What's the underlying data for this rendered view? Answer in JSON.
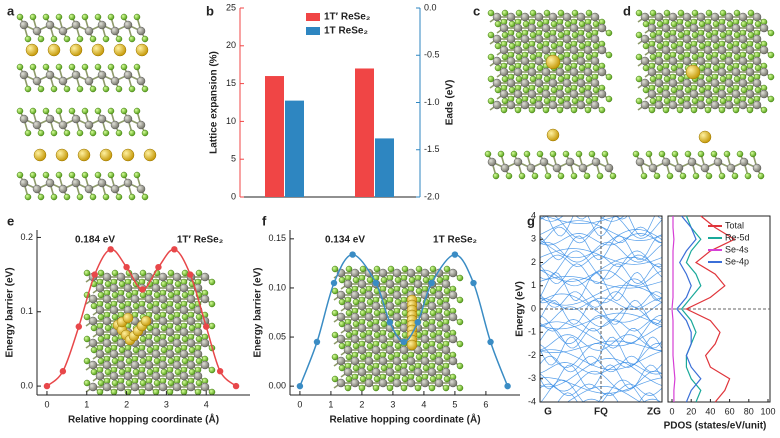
{
  "structures": {
    "panels": [
      "a",
      "c",
      "d"
    ]
  },
  "chart_data": [
    {
      "type": "bar",
      "panel": "b",
      "categories": [
        null,
        null
      ],
      "series": [
        {
          "name": "1T′ ReSe₂",
          "color": "#f04545",
          "values": [
            16,
            17
          ]
        },
        {
          "name": "1T ReSe₂",
          "color": "#2e86c1",
          "values": [
            -0.98,
            -1.38
          ],
          "axis": "y2"
        }
      ],
      "ylabel": "Lattice expansion (%)",
      "y2label": "Eads (eV)",
      "ylim": [
        0,
        25
      ],
      "yticks": [
        0,
        5,
        10,
        15,
        20,
        25
      ],
      "y2lim": [
        -2,
        0
      ],
      "y2ticks": [
        {
          "value": 0,
          "label": "0.0"
        },
        -0.5,
        {
          "value": -1,
          "label": "-1.0"
        },
        -1.5,
        {
          "value": -2,
          "label": "-2.0"
        }
      ],
      "legend": "top"
    },
    {
      "type": "line",
      "panel": "e",
      "color": "#e8474a",
      "x": [
        0,
        0.4,
        0.8,
        1.2,
        1.6,
        2.0,
        2.4,
        2.8,
        3.2,
        3.6,
        4.0,
        4.35,
        4.75
      ],
      "values": [
        0,
        0.02,
        0.08,
        0.15,
        0.184,
        0.16,
        0.13,
        0.16,
        0.184,
        0.15,
        0.08,
        0.02,
        0
      ],
      "xlabel": "Relative hopping coordinate (Å)",
      "ylabel": "Energy barrier (eV)",
      "xlim": [
        -0.25,
        5.1
      ],
      "ylim": [
        -0.012,
        0.21
      ],
      "xticks": [
        0,
        1,
        2,
        3,
        4
      ],
      "yticks": [
        {
          "value": 0,
          "label": "0.0"
        },
        0.1,
        0.2
      ],
      "annotations": [
        "0.184 eV",
        "1T′ ReSe₂"
      ]
    },
    {
      "type": "line",
      "panel": "f",
      "color": "#3a8cc4",
      "x": [
        0,
        0.55,
        1.1,
        1.7,
        2.45,
        2.9,
        3.35,
        3.8,
        4.25,
        5.0,
        5.6,
        6.15,
        6.7
      ],
      "values": [
        0,
        0.045,
        0.105,
        0.134,
        0.105,
        0.065,
        0.045,
        0.065,
        0.105,
        0.134,
        0.105,
        0.045,
        0
      ],
      "xlabel": "Relative hopping coordinate (Å)",
      "ylabel": "Energy barrier (eV)",
      "xlim": [
        -0.32,
        7.1
      ],
      "ylim": [
        -0.009,
        0.159
      ],
      "xticks": [
        0,
        1,
        2,
        3,
        4,
        5,
        6
      ],
      "yticks": [
        {
          "value": 0,
          "label": "0.00"
        },
        {
          "value": 0.05,
          "label": "0.05"
        },
        {
          "value": 0.1,
          "label": "0.10"
        },
        {
          "value": 0.15,
          "label": "0.15"
        }
      ],
      "annotations": [
        "0.134 eV",
        "1T ReSe₂"
      ]
    },
    {
      "type": "band",
      "panel": "g",
      "color": "#3a8ee6",
      "categories": [
        "G",
        "FQ",
        "ZG"
      ],
      "ylabel": "Energy (eV)",
      "ylim": [
        -4,
        4
      ],
      "yticks": [
        -4,
        -3,
        -2,
        -1,
        0,
        1,
        2,
        3,
        4
      ]
    },
    {
      "type": "line",
      "orientation": "horizontal",
      "x": [
        -4,
        -3.5,
        -3,
        -2.5,
        -2,
        -1.5,
        -1,
        -0.5,
        0,
        0.5,
        1,
        1.5,
        2,
        2.5,
        3,
        3.5,
        4
      ],
      "series": [
        {
          "name": "Total",
          "color": "#e0353b",
          "values": [
            45,
            55,
            60,
            40,
            35,
            45,
            50,
            40,
            15,
            40,
            55,
            45,
            25,
            40,
            65,
            45,
            30
          ]
        },
        {
          "name": "Re-5d",
          "color": "#1aa99a",
          "values": [
            25,
            30,
            20,
            15,
            15,
            20,
            25,
            20,
            10,
            20,
            30,
            25,
            15,
            20,
            30,
            20,
            15
          ]
        },
        {
          "name": "Se-4s",
          "color": "#d63fd6",
          "values": [
            2,
            2,
            3,
            2,
            1,
            1,
            1,
            1,
            0,
            1,
            1,
            1,
            1,
            1,
            2,
            1,
            1
          ]
        },
        {
          "name": "Se-4p",
          "color": "#3b6fd8",
          "values": [
            15,
            20,
            30,
            20,
            15,
            20,
            20,
            15,
            5,
            15,
            20,
            15,
            8,
            15,
            25,
            20,
            10
          ]
        }
      ],
      "xlabel": "PDOS (states/eV/unit)",
      "xlim": [
        0,
        100
      ],
      "xticks": [
        0,
        20,
        40,
        60,
        80,
        100
      ],
      "ylim": [
        -4,
        4
      ],
      "legend": "top-right"
    }
  ]
}
